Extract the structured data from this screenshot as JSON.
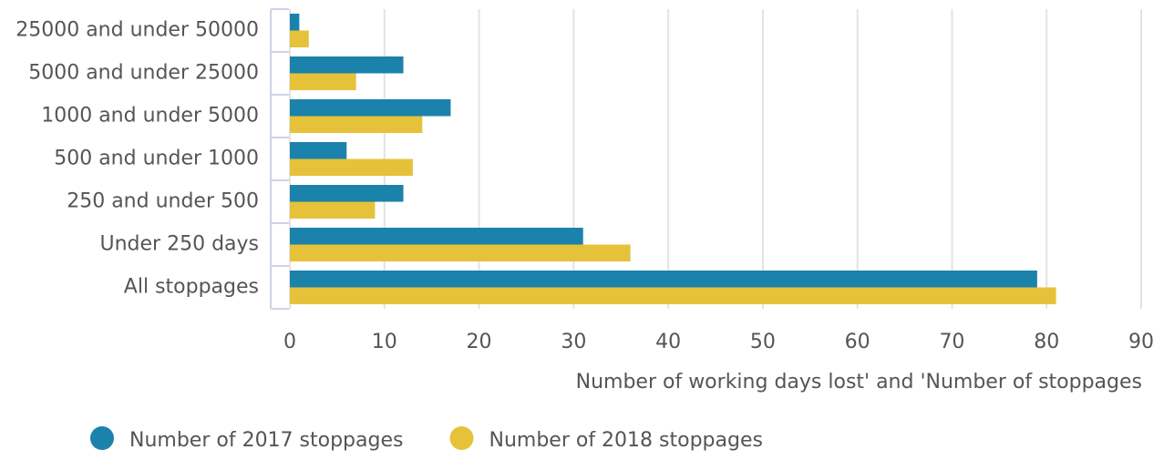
{
  "chart_data": {
    "type": "barh",
    "x_label": "Number of working days lost' and 'Number of stoppages",
    "categories": [
      "25000 and under 50000",
      "5000 and under 25000",
      "1000 and under 5000",
      "500 and under 1000",
      "250 and under 500",
      "Under 250 days",
      "All stoppages"
    ],
    "series": [
      {
        "name": "Number of 2017 stoppages",
        "color": "#1b82ab",
        "values": [
          1,
          12,
          17,
          6,
          12,
          31,
          79
        ]
      },
      {
        "name": "Number of 2018 stoppages",
        "color": "#e6c23a",
        "values": [
          2,
          7,
          14,
          13,
          9,
          36,
          81
        ]
      }
    ],
    "xlim": [
      0,
      90
    ],
    "xticks": [
      0,
      10,
      20,
      30,
      40,
      50,
      60,
      70,
      80,
      90
    ],
    "grid": true,
    "legend": "bottom"
  }
}
